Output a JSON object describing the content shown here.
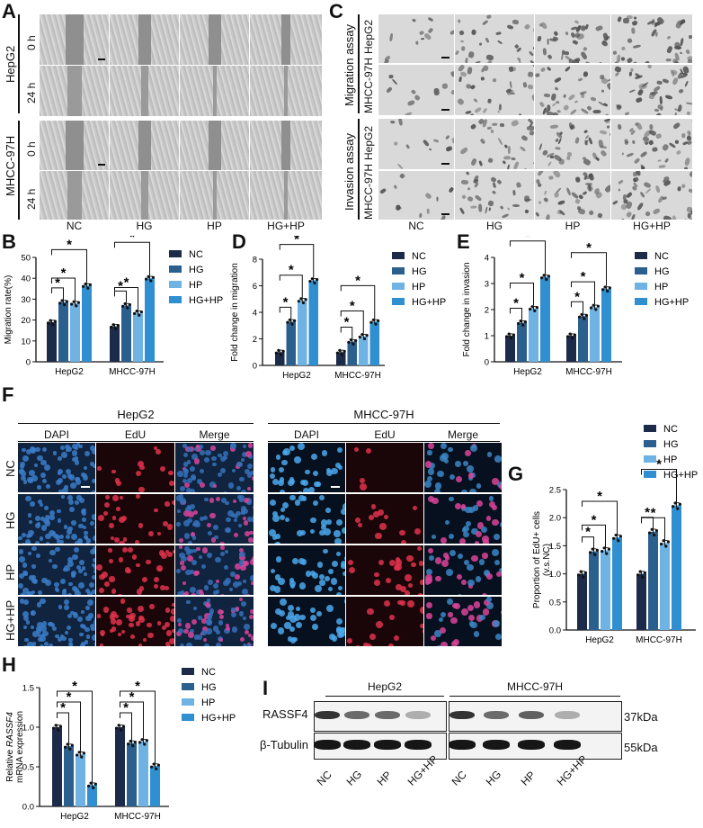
{
  "colors": {
    "nc": "#1d2b4a",
    "hg": "#2b5f8e",
    "hp": "#6fb2e4",
    "hghp": "#2f8fd0"
  },
  "panelA": {
    "label": "A",
    "lines": [
      "HepG2",
      "MHCC-97H"
    ],
    "times": [
      "0 h",
      "24 h"
    ],
    "groups": [
      "NC",
      "HG",
      "HP",
      "HG+HP"
    ]
  },
  "panelC": {
    "label": "C",
    "assays": [
      "Migration assay",
      "Invasion assay"
    ],
    "lines": [
      "HepG2",
      "MHCC-97H"
    ],
    "groups": [
      "NC",
      "HG",
      "HP",
      "HG+HP"
    ]
  },
  "panelF": {
    "label": "F",
    "lines": [
      "HepG2",
      "MHCC-97H"
    ],
    "channels": [
      "DAPI",
      "EdU",
      "Merge"
    ],
    "groups": [
      "NC",
      "HG",
      "HP",
      "HG+HP"
    ]
  },
  "panelI": {
    "label": "I",
    "lines": [
      "HepG2",
      "MHCC-97H"
    ],
    "proteins": [
      "RASSF4",
      "β-Tubulin"
    ],
    "sizes": [
      "37kDa",
      "55kDa"
    ],
    "lanes": [
      "NC",
      "HG",
      "HP",
      "HG+HP",
      "NC",
      "HG",
      "HP",
      "HG+HP"
    ],
    "band_intensity": {
      "RASSF4": [
        0.85,
        0.6,
        0.6,
        0.3,
        0.85,
        0.6,
        0.65,
        0.3
      ],
      "beta_tubulin": [
        0.95,
        0.95,
        0.95,
        0.95,
        0.95,
        0.95,
        0.95,
        0.95
      ]
    }
  },
  "chart_data": [
    {
      "id": "B",
      "label": "B",
      "type": "bar",
      "categories": [
        "HepG2",
        "MHCC-97H"
      ],
      "ylabel": "Migration rate(%)",
      "ylim": [
        0,
        50
      ],
      "yticks": [
        0,
        10,
        20,
        30,
        40,
        50
      ],
      "series": [
        {
          "name": "NC",
          "values": [
            19,
            17
          ]
        },
        {
          "name": "HG",
          "values": [
            28.5,
            27
          ]
        },
        {
          "name": "HP",
          "values": [
            28,
            23.5
          ]
        },
        {
          "name": "HG+HP",
          "values": [
            36.5,
            40
          ]
        }
      ],
      "sig": "*",
      "legend": "right"
    },
    {
      "id": "D",
      "label": "D",
      "type": "bar",
      "categories": [
        "HepG2",
        "MHCC-97H"
      ],
      "ylabel": "Fold change in migration",
      "ylim": [
        0,
        8
      ],
      "yticks": [
        0,
        2,
        4,
        6,
        8
      ],
      "series": [
        {
          "name": "NC",
          "values": [
            1,
            1
          ]
        },
        {
          "name": "HG",
          "values": [
            3.3,
            1.8
          ]
        },
        {
          "name": "HP",
          "values": [
            4.9,
            2.2
          ]
        },
        {
          "name": "HG+HP",
          "values": [
            6.4,
            3.3
          ]
        }
      ],
      "sig": "*",
      "legend": "right"
    },
    {
      "id": "E",
      "label": "E",
      "type": "bar",
      "categories": [
        "HepG2",
        "MHCC-97H"
      ],
      "ylabel": "Fold change in invasion",
      "ylim": [
        0,
        4
      ],
      "yticks": [
        0,
        1,
        2,
        3,
        4
      ],
      "series": [
        {
          "name": "NC",
          "values": [
            1,
            1
          ]
        },
        {
          "name": "HG",
          "values": [
            1.5,
            1.75
          ]
        },
        {
          "name": "HP",
          "values": [
            2.05,
            2.1
          ]
        },
        {
          "name": "HG+HP",
          "values": [
            3.25,
            2.8
          ]
        }
      ],
      "sig": "*",
      "legend": "right"
    },
    {
      "id": "G",
      "label": "G",
      "type": "bar",
      "categories": [
        "HepG2",
        "MHCC-97H"
      ],
      "ylabel": "Proportion of EdU+ cells (v.s.NC)",
      "ylim": [
        0,
        2.5
      ],
      "yticks": [
        0.0,
        0.5,
        1.0,
        1.5,
        2.0,
        2.5
      ],
      "series": [
        {
          "name": "NC",
          "values": [
            1.0,
            1.0
          ]
        },
        {
          "name": "HG",
          "values": [
            1.4,
            1.75
          ]
        },
        {
          "name": "HP",
          "values": [
            1.42,
            1.55
          ]
        },
        {
          "name": "HG+HP",
          "values": [
            1.65,
            2.22
          ]
        }
      ],
      "sig": "*",
      "legend": "top"
    },
    {
      "id": "H",
      "label": "H",
      "type": "bar",
      "categories": [
        "HepG2",
        "MHCC-97H"
      ],
      "ylabel": "Relative RASSF4 mRNA expression",
      "ylim": [
        0,
        1.5
      ],
      "yticks": [
        0.0,
        0.5,
        1.0,
        1.5
      ],
      "series": [
        {
          "name": "NC",
          "values": [
            1.0,
            1.0
          ]
        },
        {
          "name": "HG",
          "values": [
            0.76,
            0.8
          ]
        },
        {
          "name": "HP",
          "values": [
            0.66,
            0.82
          ]
        },
        {
          "name": "HG+HP",
          "values": [
            0.27,
            0.51
          ]
        }
      ],
      "sig": "*",
      "legend": "right"
    }
  ]
}
